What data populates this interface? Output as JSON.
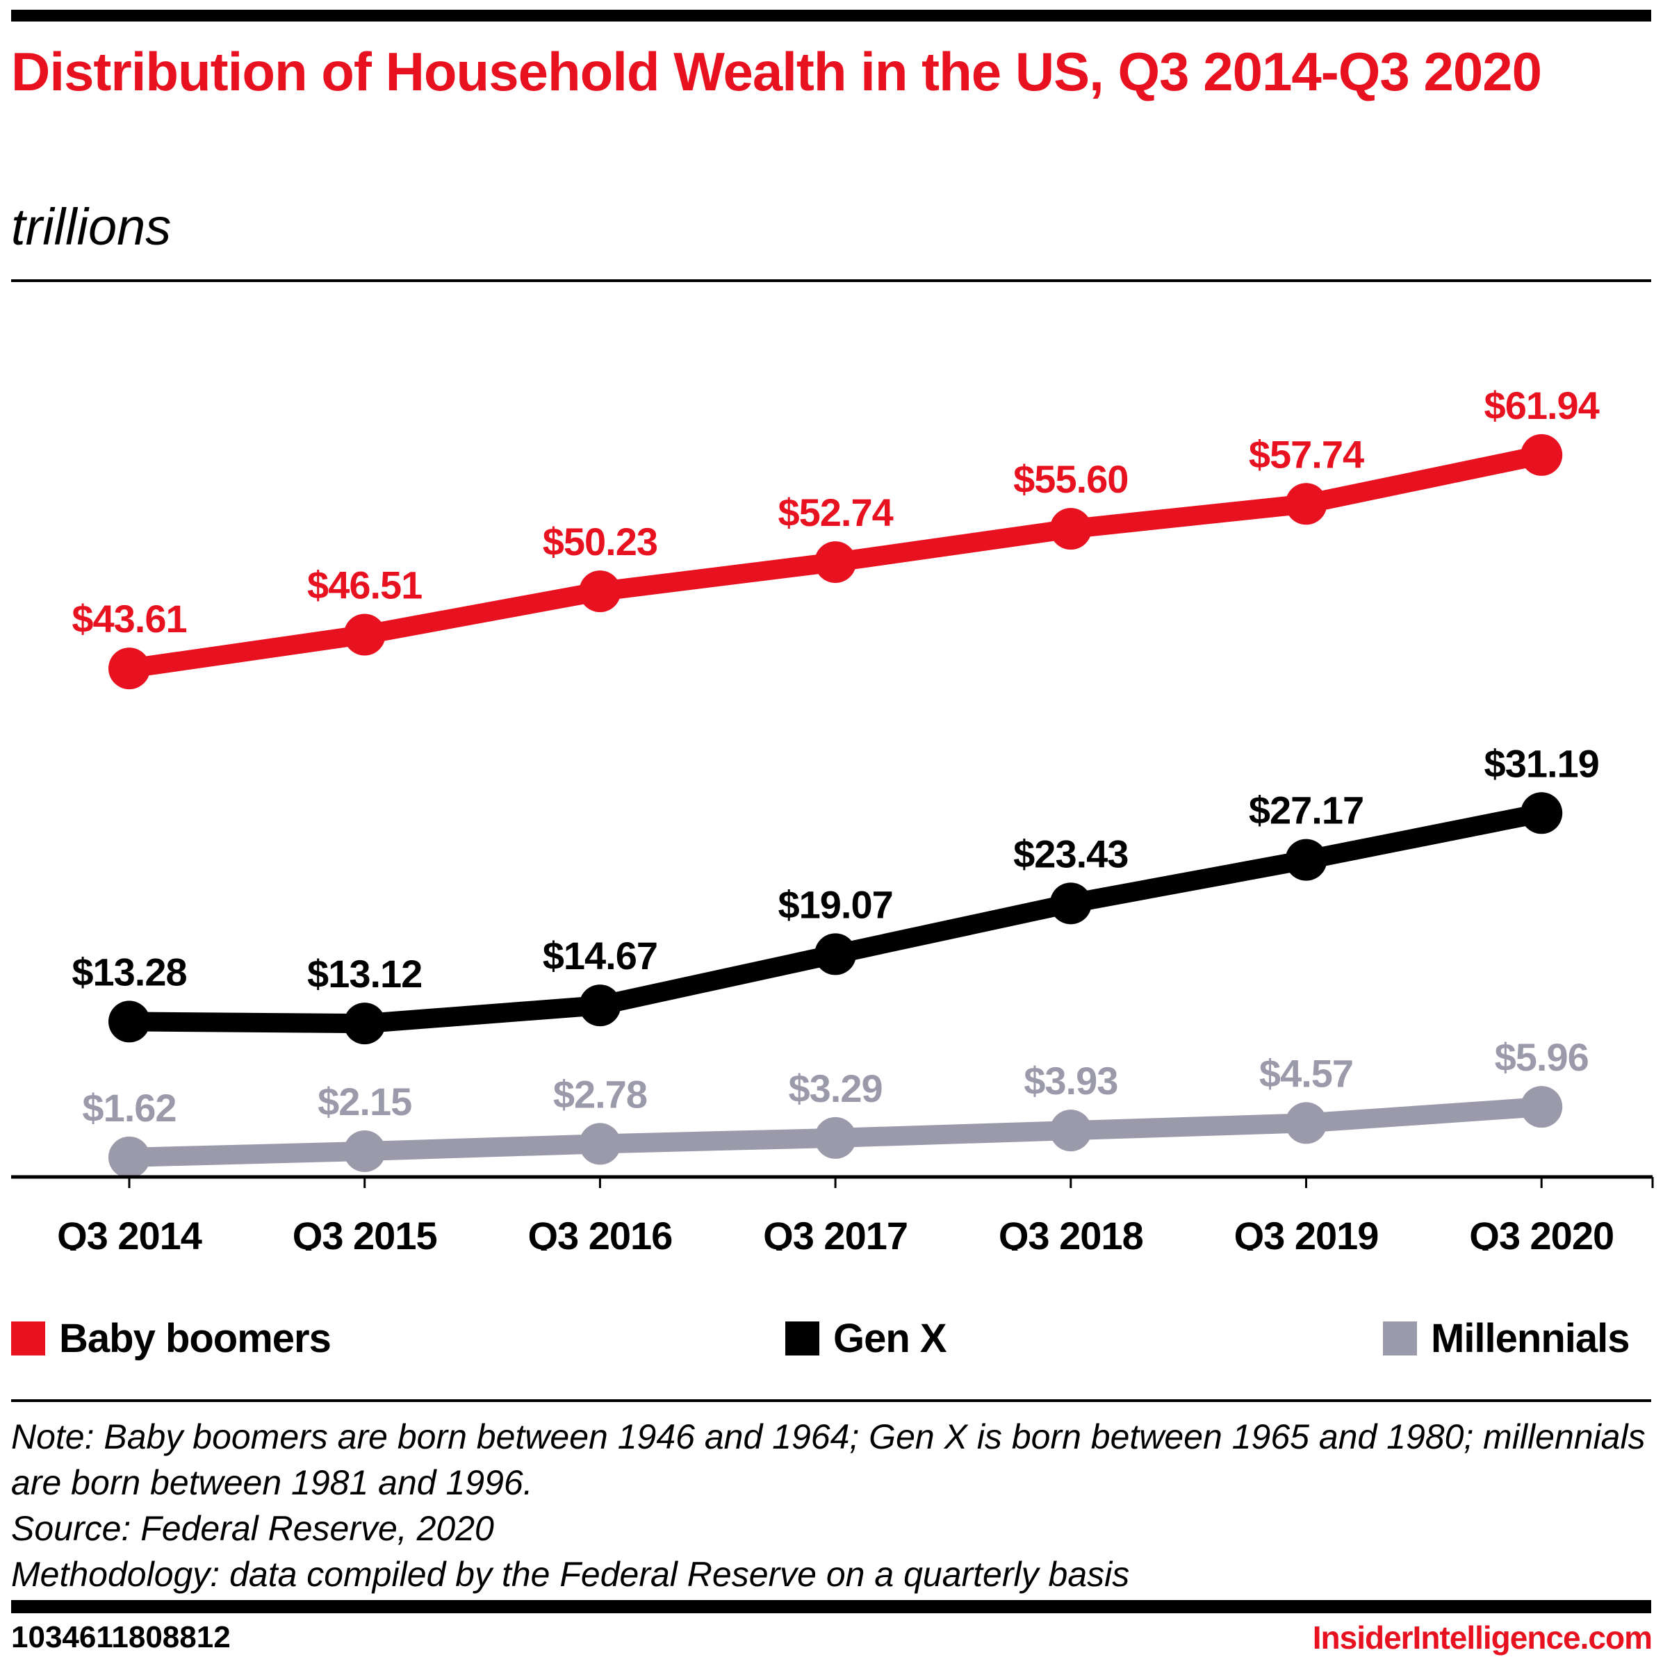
{
  "header": {
    "title": "Distribution of Household Wealth in the US, Q3 2014-Q3 2020",
    "subtitle": "trillions"
  },
  "chart_data": {
    "type": "line",
    "title": "Distribution of Household Wealth in the US, Q3 2014-Q3 2020",
    "subtitle": "trillions",
    "xlabel": "",
    "ylabel": "",
    "x": [
      "Q3 2014",
      "Q3 2015",
      "Q3 2016",
      "Q3 2017",
      "Q3 2018",
      "Q3 2019",
      "Q3 2020"
    ],
    "ylim": [
      0,
      65
    ],
    "grid": false,
    "legend_position": "bottom",
    "series": [
      {
        "name": "Baby boomers",
        "color": "#e8111f",
        "values": [
          43.61,
          46.51,
          50.23,
          52.74,
          55.6,
          57.74,
          61.94
        ],
        "labels": [
          "$43.61",
          "$46.51",
          "$50.23",
          "$52.74",
          "$55.60",
          "$57.74",
          "$61.94"
        ]
      },
      {
        "name": "Gen X",
        "color": "#000000",
        "values": [
          13.28,
          13.12,
          14.67,
          19.07,
          23.43,
          27.17,
          31.19
        ],
        "labels": [
          "$13.28",
          "$13.12",
          "$14.67",
          "$19.07",
          "$23.43",
          "$27.17",
          "$31.19"
        ]
      },
      {
        "name": "Millennials",
        "color": "#9b9aab",
        "values": [
          1.62,
          2.15,
          2.78,
          3.29,
          3.93,
          4.57,
          5.96
        ],
        "labels": [
          "$1.62",
          "$2.15",
          "$2.78",
          "$3.29",
          "$3.93",
          "$4.57",
          "$5.96"
        ]
      }
    ]
  },
  "legend": {
    "items": [
      {
        "label": "Baby boomers",
        "color": "#e8111f"
      },
      {
        "label": "Gen X",
        "color": "#000000"
      },
      {
        "label": "Millennials",
        "color": "#9b9aab"
      }
    ]
  },
  "footer": {
    "note": "Note: Baby boomers are born between 1946 and 1964; Gen X is born between 1965 and 1980; millennials are born between 1981 and 1996.",
    "source": "Source: Federal Reserve, 2020",
    "methodology": "Methodology: data compiled by the Federal Reserve on a quarterly basis",
    "chart_id": "1034611808812",
    "brand": "InsiderIntelligence.com"
  }
}
